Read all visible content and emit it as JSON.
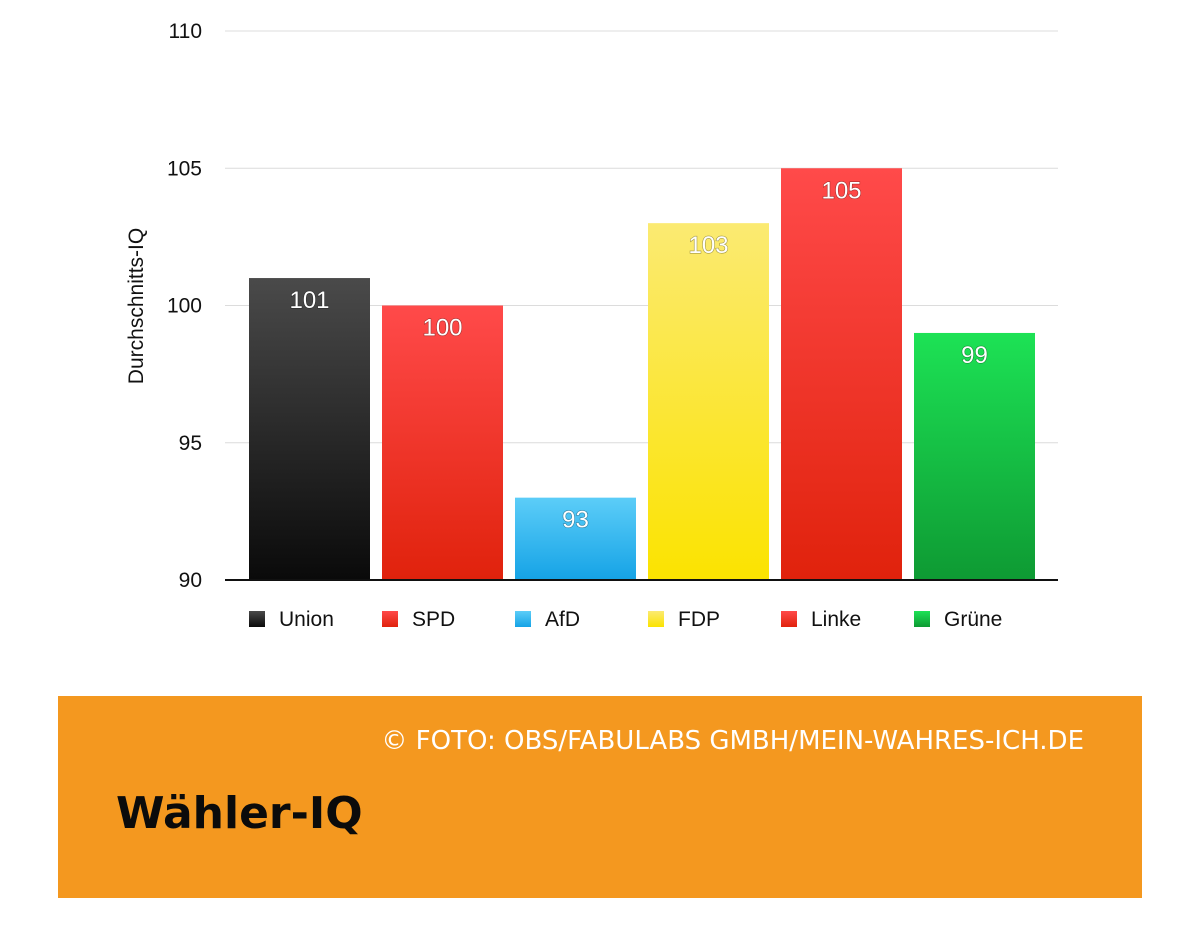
{
  "chart_data": {
    "type": "bar",
    "ylabel": "Durchschnitts-IQ",
    "ylim": [
      90,
      110
    ],
    "yticks": [
      90,
      95,
      100,
      105,
      110
    ],
    "grid": true,
    "legend_placement": "bottom",
    "categories": [
      "Union",
      "SPD",
      "AfD",
      "FDP",
      "Linke",
      "Grüne"
    ],
    "values": [
      101,
      100,
      93,
      103,
      105,
      99
    ],
    "data_labels": [
      "101",
      "100",
      "93",
      "103",
      "105",
      "99"
    ],
    "colors": [
      {
        "top": "#4a4a4a",
        "bottom": "#0a0a0a"
      },
      {
        "top": "#ff4a4a",
        "bottom": "#e0220c"
      },
      {
        "top": "#5ccdf8",
        "bottom": "#15a3e6"
      },
      {
        "top": "#fbea72",
        "bottom": "#fbe300"
      },
      {
        "top": "#ff4a4a",
        "bottom": "#e0220c"
      },
      {
        "top": "#1de255",
        "bottom": "#0e9a33"
      }
    ]
  },
  "caption": {
    "credit": "© FOTO: OBS/FABULABS GMBH/MEIN-WAHRES-ICH.DE",
    "title": "Wähler-IQ"
  }
}
